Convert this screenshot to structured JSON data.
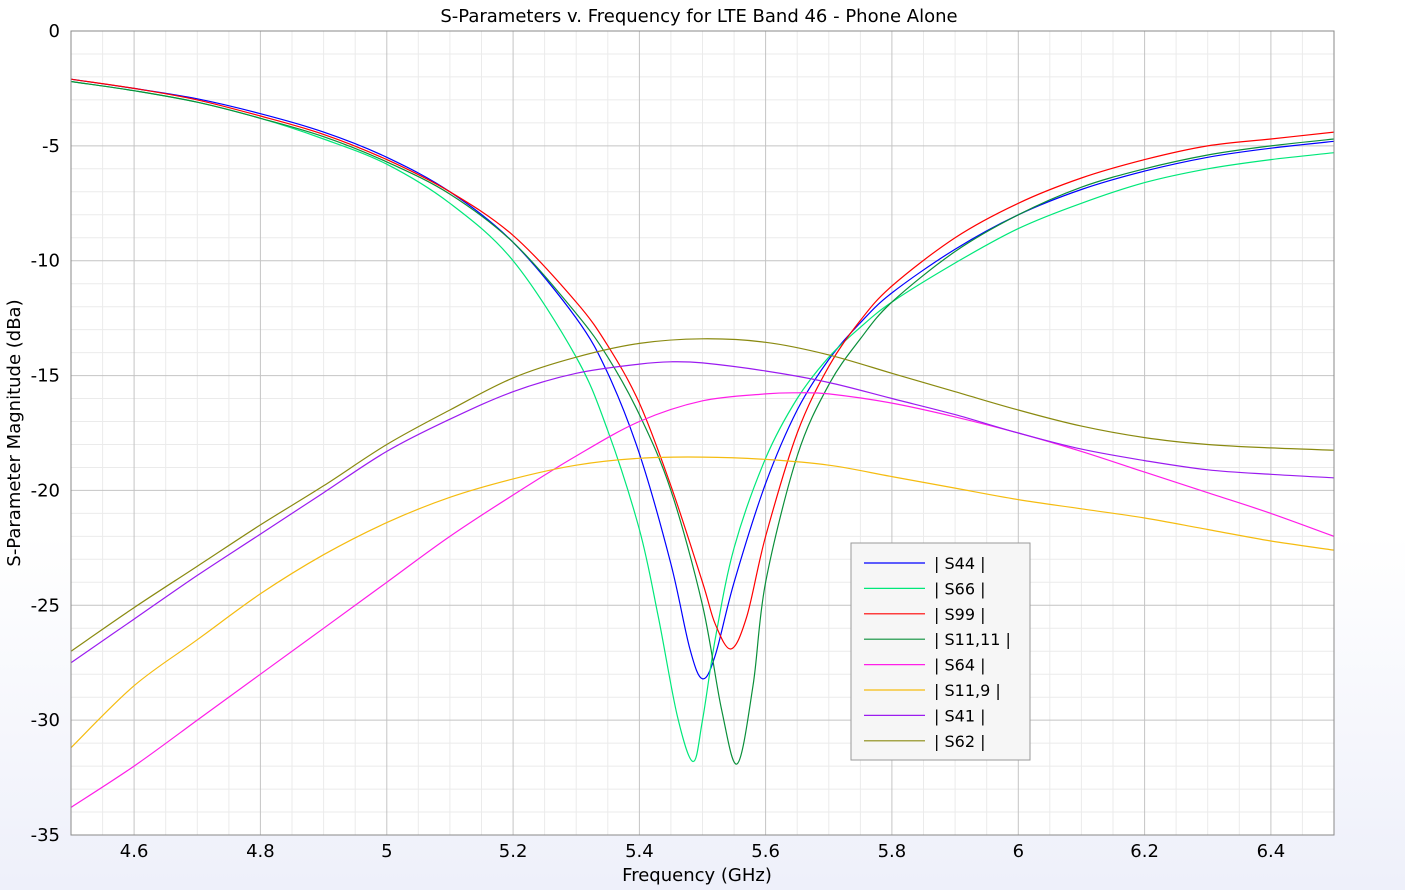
{
  "chart_data": {
    "type": "line",
    "title": "S-Parameters v. Frequency for LTE Band 46 - Phone Alone",
    "xlabel": "Frequency (GHz)",
    "ylabel": "S-Parameter Magnitude (dBa)",
    "xlim": [
      4.5,
      6.5
    ],
    "ylim": [
      -35,
      0
    ],
    "x_ticks": [
      "4.6",
      "4.8",
      "5",
      "5.2",
      "5.4",
      "5.6",
      "5.8",
      "6",
      "6.2",
      "6.4"
    ],
    "y_ticks": [
      "0",
      "-5",
      "-10",
      "-15",
      "-20",
      "-25",
      "-30",
      "-35"
    ],
    "grid": true,
    "legend_position": "lower-right",
    "series": [
      {
        "name": "| S44 |",
        "color": "#0000ff",
        "x": [
          4.5,
          4.6,
          4.7,
          4.8,
          4.9,
          5.0,
          5.1,
          5.2,
          5.3,
          5.35,
          5.4,
          5.45,
          5.48,
          5.5,
          5.52,
          5.55,
          5.6,
          5.65,
          5.7,
          5.75,
          5.8,
          5.9,
          6.0,
          6.1,
          6.2,
          6.3,
          6.4,
          6.5
        ],
        "y": [
          -2.1,
          -2.5,
          -2.95,
          -3.6,
          -4.4,
          -5.5,
          -7.0,
          -9.2,
          -12.5,
          -14.9,
          -18.4,
          -23.2,
          -26.9,
          -28.2,
          -27.2,
          -24.0,
          -19.7,
          -16.5,
          -14.3,
          -12.7,
          -11.4,
          -9.5,
          -8.0,
          -6.9,
          -6.1,
          -5.5,
          -5.1,
          -4.8
        ]
      },
      {
        "name": "| S66 |",
        "color": "#00e87a",
        "x": [
          4.5,
          4.6,
          4.7,
          4.8,
          4.9,
          5.0,
          5.1,
          5.2,
          5.3,
          5.35,
          5.4,
          5.43,
          5.46,
          5.485,
          5.5,
          5.52,
          5.55,
          5.6,
          5.65,
          5.7,
          5.75,
          5.8,
          5.9,
          6.0,
          6.1,
          6.2,
          6.3,
          6.4,
          6.5
        ],
        "y": [
          -2.2,
          -2.6,
          -3.1,
          -3.8,
          -4.7,
          -5.8,
          -7.5,
          -10.0,
          -14.2,
          -17.4,
          -21.7,
          -25.5,
          -29.8,
          -31.8,
          -30.0,
          -26.5,
          -22.5,
          -18.6,
          -16.0,
          -14.2,
          -12.9,
          -11.8,
          -10.1,
          -8.6,
          -7.5,
          -6.6,
          -6.0,
          -5.6,
          -5.3
        ]
      },
      {
        "name": "| S99 |",
        "color": "#ff0000",
        "x": [
          4.5,
          4.6,
          4.7,
          4.8,
          4.9,
          5.0,
          5.1,
          5.2,
          5.3,
          5.35,
          5.4,
          5.45,
          5.5,
          5.52,
          5.545,
          5.57,
          5.6,
          5.65,
          5.7,
          5.75,
          5.8,
          5.9,
          6.0,
          6.1,
          6.2,
          6.3,
          6.4,
          6.5
        ],
        "y": [
          -2.1,
          -2.5,
          -3.0,
          -3.7,
          -4.5,
          -5.6,
          -7.0,
          -8.9,
          -11.8,
          -13.7,
          -16.2,
          -19.8,
          -24.0,
          -25.8,
          -26.9,
          -25.5,
          -22.0,
          -17.5,
          -14.6,
          -12.6,
          -11.1,
          -9.0,
          -7.5,
          -6.4,
          -5.6,
          -5.0,
          -4.7,
          -4.4
        ]
      },
      {
        "name": "| S11,11 |",
        "color": "#0a8f3a",
        "x": [
          4.5,
          4.6,
          4.7,
          4.8,
          4.9,
          5.0,
          5.1,
          5.2,
          5.3,
          5.35,
          5.4,
          5.45,
          5.5,
          5.53,
          5.555,
          5.58,
          5.6,
          5.65,
          5.7,
          5.75,
          5.8,
          5.9,
          6.0,
          6.1,
          6.2,
          6.3,
          6.4,
          6.5
        ],
        "y": [
          -2.2,
          -2.6,
          -3.1,
          -3.8,
          -4.6,
          -5.7,
          -7.1,
          -9.2,
          -12.3,
          -14.2,
          -16.7,
          -20.0,
          -25.0,
          -29.5,
          -31.9,
          -28.5,
          -24.0,
          -18.5,
          -15.4,
          -13.4,
          -11.8,
          -9.6,
          -8.0,
          -6.8,
          -6.0,
          -5.4,
          -5.0,
          -4.7
        ]
      },
      {
        "name": "| S64 |",
        "color": "#ff1ee8",
        "x": [
          4.5,
          4.6,
          4.7,
          4.8,
          4.9,
          5.0,
          5.1,
          5.2,
          5.3,
          5.4,
          5.5,
          5.6,
          5.65,
          5.7,
          5.8,
          5.9,
          6.0,
          6.1,
          6.2,
          6.3,
          6.4,
          6.5
        ],
        "y": [
          -33.8,
          -32.0,
          -30.0,
          -28.0,
          -26.0,
          -24.0,
          -22.0,
          -20.2,
          -18.5,
          -17.0,
          -16.1,
          -15.8,
          -15.75,
          -15.8,
          -16.2,
          -16.8,
          -17.5,
          -18.3,
          -19.2,
          -20.1,
          -21.0,
          -22.0
        ]
      },
      {
        "name": "| S11,9 |",
        "color": "#f5bc10",
        "x": [
          4.5,
          4.6,
          4.7,
          4.8,
          4.9,
          5.0,
          5.1,
          5.2,
          5.3,
          5.4,
          5.5,
          5.6,
          5.7,
          5.8,
          5.9,
          6.0,
          6.1,
          6.2,
          6.3,
          6.4,
          6.5
        ],
        "y": [
          -31.2,
          -28.5,
          -26.5,
          -24.5,
          -22.8,
          -21.4,
          -20.3,
          -19.5,
          -18.9,
          -18.6,
          -18.55,
          -18.65,
          -18.9,
          -19.4,
          -19.9,
          -20.4,
          -20.8,
          -21.2,
          -21.7,
          -22.2,
          -22.6
        ]
      },
      {
        "name": "| S41 |",
        "color": "#9b1cf0",
        "x": [
          4.5,
          4.6,
          4.7,
          4.8,
          4.9,
          5.0,
          5.1,
          5.2,
          5.3,
          5.4,
          5.45,
          5.5,
          5.6,
          5.7,
          5.8,
          5.9,
          6.0,
          6.1,
          6.2,
          6.3,
          6.4,
          6.5
        ],
        "y": [
          -27.5,
          -25.6,
          -23.7,
          -21.9,
          -20.1,
          -18.3,
          -16.9,
          -15.7,
          -14.9,
          -14.5,
          -14.4,
          -14.45,
          -14.8,
          -15.3,
          -16.0,
          -16.7,
          -17.5,
          -18.2,
          -18.7,
          -19.1,
          -19.3,
          -19.45
        ]
      },
      {
        "name": "| S62 |",
        "color": "#8a8a10",
        "x": [
          4.5,
          4.6,
          4.7,
          4.8,
          4.9,
          5.0,
          5.1,
          5.2,
          5.3,
          5.4,
          5.5,
          5.6,
          5.7,
          5.8,
          5.9,
          6.0,
          6.1,
          6.2,
          6.3,
          6.4,
          6.5
        ],
        "y": [
          -27.0,
          -25.1,
          -23.3,
          -21.5,
          -19.8,
          -18.0,
          -16.5,
          -15.1,
          -14.2,
          -13.6,
          -13.4,
          -13.55,
          -14.1,
          -14.9,
          -15.7,
          -16.5,
          -17.2,
          -17.7,
          -18.0,
          -18.15,
          -18.25
        ]
      }
    ]
  }
}
